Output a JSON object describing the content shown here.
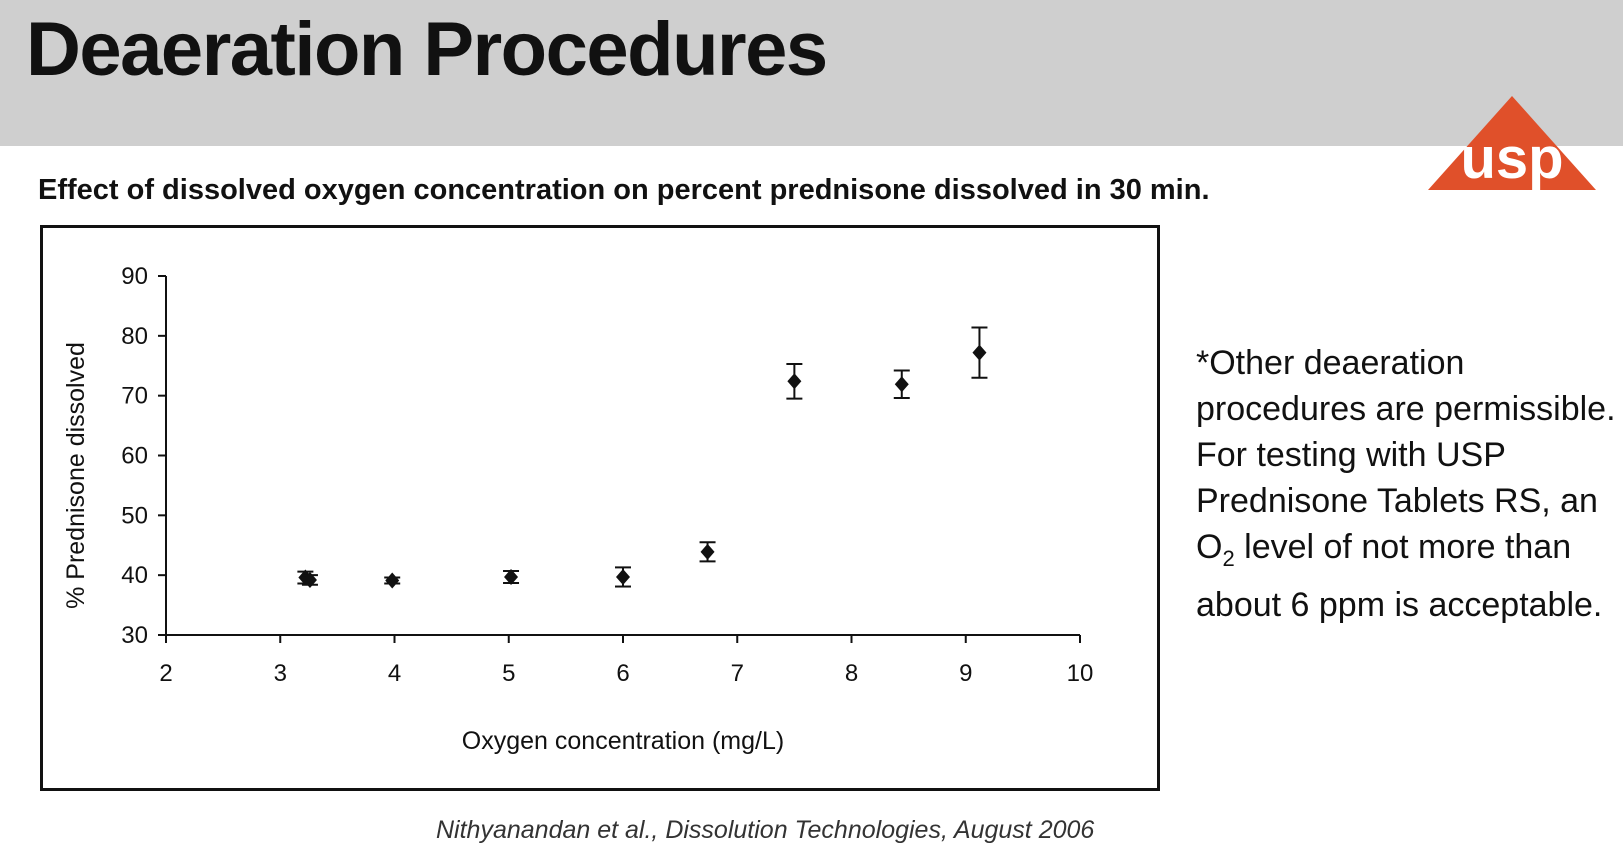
{
  "slide": {
    "title": "Deaeration Procedures",
    "subtitle": "Effect of dissolved oxygen concentration on percent prednisone dissolved in 30 min.",
    "note_part1": "*Other deaeration procedures are permissible. For testing with USP Prednisone Tablets RS, an O",
    "note_sub": "2",
    "note_part2": " level of not more than about 6 ppm is acceptable.",
    "citation": "Nithyanandan et al., Dissolution Technologies, August 2006",
    "logo_text": "usp",
    "logo_color": "#e0502a",
    "header_bg": "#cfcfcf"
  },
  "chart_data": {
    "type": "scatter",
    "xlabel": "Oxygen concentration (mg/L)",
    "ylabel": "% Prednisone dissolved",
    "xlim": [
      2,
      10
    ],
    "ylim": [
      30,
      90
    ],
    "xticks": [
      2,
      3,
      4,
      5,
      6,
      7,
      8,
      9,
      10
    ],
    "yticks": [
      30,
      40,
      50,
      60,
      70,
      80,
      90
    ],
    "grid": false,
    "marker": "diamond",
    "marker_color": "#111111",
    "points": [
      {
        "x": 3.22,
        "y": 39.6,
        "err": 1.0
      },
      {
        "x": 3.26,
        "y": 39.2,
        "err": 0.8
      },
      {
        "x": 3.98,
        "y": 39.1,
        "err": 0.5
      },
      {
        "x": 5.02,
        "y": 39.7,
        "err": 1.0
      },
      {
        "x": 6.0,
        "y": 39.7,
        "err": 1.6
      },
      {
        "x": 6.74,
        "y": 43.9,
        "err": 1.6
      },
      {
        "x": 7.5,
        "y": 72.4,
        "err": 2.9
      },
      {
        "x": 8.44,
        "y": 71.9,
        "err": 2.3
      },
      {
        "x": 9.12,
        "y": 77.2,
        "err": 4.2
      }
    ]
  }
}
